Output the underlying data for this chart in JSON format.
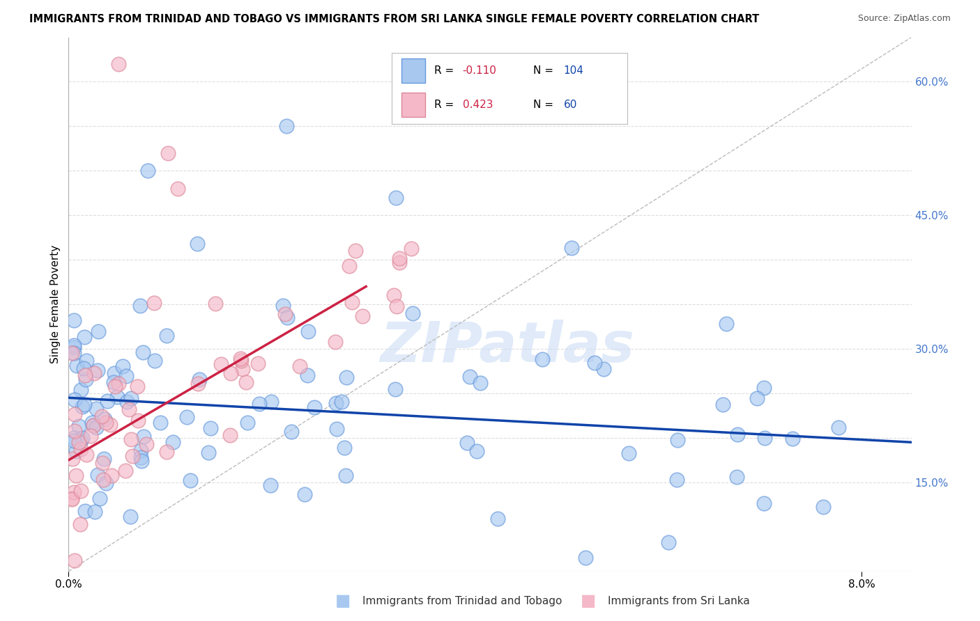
{
  "title": "IMMIGRANTS FROM TRINIDAD AND TOBAGO VS IMMIGRANTS FROM SRI LANKA SINGLE FEMALE POVERTY CORRELATION CHART",
  "source": "Source: ZipAtlas.com",
  "ylabel_left": "Single Female Poverty",
  "xlim": [
    0.0,
    0.085
  ],
  "ylim": [
    0.05,
    0.65
  ],
  "blue_color": "#A8C8F0",
  "pink_color": "#F4B8C8",
  "blue_edge": "#6699DD",
  "pink_edge": "#DD8899",
  "trend_blue": "#1144AA",
  "trend_pink": "#CC2244",
  "ref_line_color": "#CCCCCC",
  "legend_R1_val": "-0.110",
  "legend_N1_val": "104",
  "legend_R2_val": "0.423",
  "legend_N2_val": "60",
  "label1": "Immigrants from Trinidad and Tobago",
  "label2": "Immigrants from Sri Lanka",
  "watermark": "ZIPatlas",
  "right_tick_vals": [
    0.15,
    0.2,
    0.25,
    0.3,
    0.35,
    0.4,
    0.45,
    0.5,
    0.55,
    0.6
  ],
  "right_tick_labels": [
    "15.0%",
    "",
    "",
    "30.0%",
    "",
    "",
    "45.0%",
    "",
    "",
    "60.0%"
  ],
  "blue_trend_x0": 0.0,
  "blue_trend_y0": 0.245,
  "blue_trend_x1": 0.085,
  "blue_trend_y1": 0.195,
  "pink_trend_x0": 0.0,
  "pink_trend_y0": 0.175,
  "pink_trend_x1": 0.03,
  "pink_trend_y1": 0.37
}
